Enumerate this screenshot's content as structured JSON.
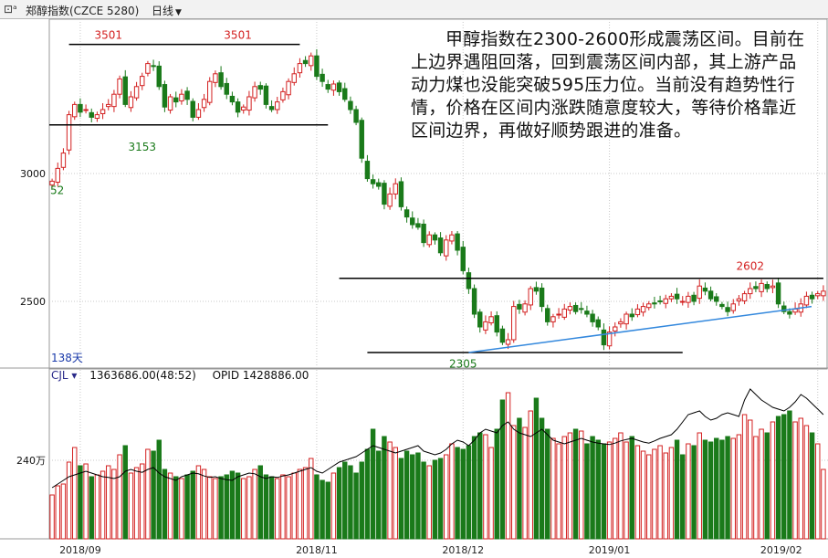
{
  "header": {
    "icon": "candlestick-chart-icon",
    "title": "郑醇指数(CZCE 5280)",
    "period_label": "日线"
  },
  "commentary": "甲醇指数在2300-2600形成震荡区间。目前在上边界遇阻回落，回到震荡区间内部，其上游产品动力煤也没能突破595压力位。当前没有趋势性行情，价格在区间内涨跌随意度较大，等待价格靠近区间边界，再做好顺势跟进的准备。",
  "price_panel": {
    "bars_label": "138天",
    "left_cut_label": "52"
  },
  "volume_panel": {
    "indicator": "CJL",
    "volume_value": "1363686.00(48:52)",
    "opid_label": "OPID",
    "opid_value": "1428886.00"
  },
  "colors": {
    "up": "#d32020",
    "down": "#1a7a1a",
    "level_line": "#000000",
    "trend_line": "#3388dd",
    "opid_line": "#000000",
    "grid": "#c8c8c8"
  },
  "chart_data": [
    {
      "type": "candlestick",
      "y_ticks": [
        3000,
        2500
      ],
      "x_tick_labels": [
        "2018/09",
        "2018/11",
        "2018/12",
        "2019/01",
        "2019/02"
      ],
      "annotations": [
        {
          "text": "3501",
          "value": 3501
        },
        {
          "text": "3501",
          "value": 3501
        },
        {
          "text": "3153",
          "value": 3153
        },
        {
          "text": "2602",
          "value": 2602
        },
        {
          "text": "2305",
          "value": 2305
        }
      ],
      "reference_lines": [
        {
          "kind": "resistance",
          "value": 3505
        },
        {
          "kind": "support",
          "value": 3190
        },
        {
          "kind": "resistance",
          "value": 2590
        },
        {
          "kind": "support",
          "value": 2300
        },
        {
          "kind": "trendline",
          "from": 2300,
          "to": 2480
        }
      ],
      "series": [
        {
          "close": [
            2970,
            3020,
            3080,
            3230,
            3270,
            3240,
            3250,
            3220,
            3230,
            3250,
            3270,
            3310,
            3370,
            3270,
            3300,
            3340,
            3380,
            3430,
            3420,
            3340,
            3260,
            3300,
            3280,
            3310,
            3290,
            3220,
            3250,
            3290,
            3360,
            3390,
            3340,
            3310,
            3280,
            3240,
            3260,
            3300,
            3340,
            3330,
            3270,
            3250,
            3280,
            3320,
            3360,
            3390,
            3430,
            3430,
            3460,
            3380,
            3360,
            3330,
            3350,
            3320,
            3290,
            3250,
            3200,
            3060,
            2980,
            2960,
            2950,
            2880,
            2920,
            2960,
            2870,
            2830,
            2800,
            2790,
            2730,
            2760,
            2740,
            2690,
            2740,
            2760,
            2700,
            2620,
            2550,
            2450,
            2400,
            2420,
            2440,
            2380,
            2340,
            2350,
            2480,
            2470,
            2490,
            2550,
            2540,
            2480,
            2420,
            2440,
            2450,
            2470,
            2480,
            2460,
            2470,
            2450,
            2420,
            2400,
            2330,
            2380,
            2400,
            2420,
            2450,
            2440,
            2470,
            2480,
            2490,
            2490,
            2500,
            2510,
            2520,
            2510,
            2500,
            2520,
            2500,
            2560,
            2540,
            2510,
            2500,
            2480,
            2460,
            2490,
            2510,
            2530,
            2550,
            2550,
            2570,
            2550,
            2560,
            2490,
            2460,
            2450,
            2470,
            2490,
            2520,
            2510,
            2530,
            2540
          ]
        }
      ]
    },
    {
      "type": "bar",
      "y_ticks_label": "240万",
      "series": [
        {
          "name": "CJL",
          "values": [
            120,
            145,
            150,
            210,
            250,
            200,
            205,
            170,
            175,
            185,
            200,
            190,
            230,
            255,
            180,
            195,
            205,
            245,
            240,
            270,
            190,
            180,
            170,
            165,
            175,
            185,
            200,
            190,
            170,
            165,
            170,
            175,
            185,
            180,
            165,
            170,
            190,
            200,
            175,
            170,
            165,
            175,
            170,
            180,
            190,
            195,
            220,
            175,
            160,
            155,
            180,
            195,
            210,
            200,
            180,
            210,
            245,
            300,
            240,
            280,
            265,
            250,
            220,
            240,
            230,
            235,
            210,
            200,
            215,
            220,
            230,
            260,
            250,
            245,
            255,
            280,
            290,
            285,
            250,
            300,
            380,
            400,
            310,
            330,
            305,
            350,
            385,
            330,
            300,
            275,
            260,
            280,
            290,
            300,
            295,
            260,
            280,
            270,
            260,
            265,
            275,
            290,
            265,
            280,
            255,
            240,
            230,
            245,
            255,
            235,
            250,
            270,
            230,
            260,
            255,
            290,
            270,
            265,
            275,
            270,
            280,
            275,
            285,
            340,
            325,
            280,
            300,
            290,
            320,
            335,
            340,
            350,
            320,
            330,
            310,
            290,
            260,
            190
          ]
        },
        {
          "name": "OPID",
          "values": [
            140,
            150,
            160,
            170,
            175,
            180,
            185,
            180,
            175,
            170,
            168,
            165,
            170,
            185,
            190,
            185,
            182,
            190,
            195,
            180,
            170,
            165,
            160,
            170,
            175,
            180,
            178,
            172,
            168,
            170,
            165,
            162,
            160,
            170,
            175,
            180,
            178,
            170,
            165,
            170,
            168,
            172,
            175,
            180,
            185,
            190,
            195,
            185,
            180,
            190,
            200,
            210,
            215,
            220,
            225,
            235,
            245,
            255,
            250,
            245,
            240,
            235,
            240,
            245,
            250,
            255,
            240,
            235,
            230,
            235,
            245,
            260,
            270,
            265,
            255,
            270,
            290,
            300,
            295,
            290,
            310,
            320,
            300,
            290,
            285,
            280,
            290,
            300,
            285,
            270,
            265,
            260,
            265,
            270,
            275,
            270,
            265,
            262,
            260,
            258,
            262,
            268,
            272,
            275,
            270,
            265,
            262,
            268,
            275,
            280,
            285,
            300,
            320,
            340,
            345,
            350,
            335,
            325,
            330,
            340,
            345,
            340,
            335,
            380,
            410,
            395,
            380,
            370,
            360,
            355,
            350,
            360,
            375,
            395,
            385,
            370,
            355,
            340
          ]
        }
      ]
    }
  ]
}
